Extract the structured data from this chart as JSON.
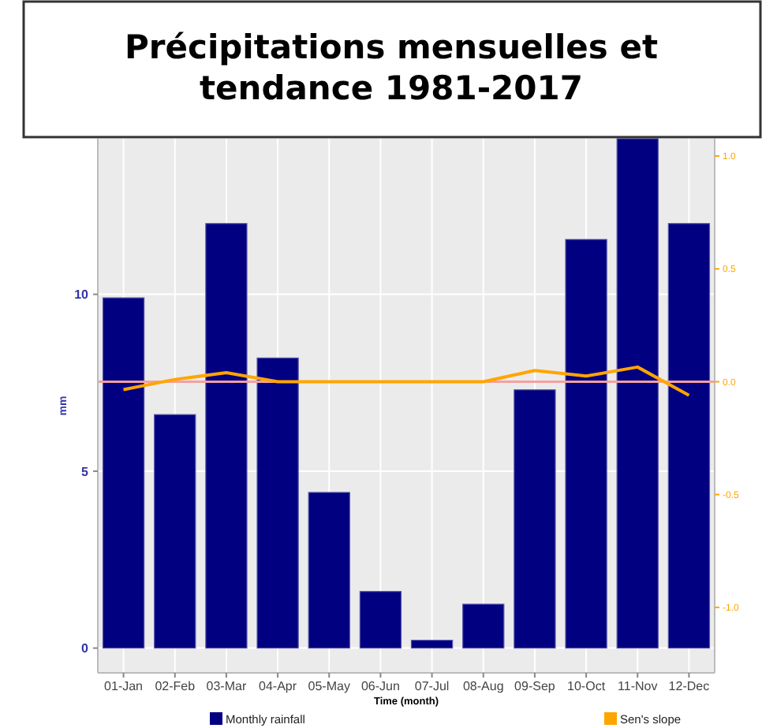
{
  "chart_data": {
    "type": "bar",
    "title": "Précipitations mensuelles et tendance 1981-2017",
    "xlabel": "Time (month)",
    "ylabel": "mm",
    "categories": [
      "01-Jan",
      "02-Feb",
      "03-Mar",
      "04-Apr",
      "05-May",
      "06-Jun",
      "07-Jul",
      "08-Aug",
      "09-Sep",
      "10-Oct",
      "11-Nov",
      "12-Dec"
    ],
    "series": [
      {
        "name": "Monthly rainfall",
        "color": "#000080",
        "values": [
          9.9,
          6.6,
          12.0,
          8.2,
          4.4,
          1.6,
          0.22,
          1.24,
          7.3,
          11.55,
          14.4,
          12.0
        ]
      },
      {
        "name": "Sen's slope",
        "type": "line",
        "axis": "y2",
        "color": "#ffa500",
        "values": [
          -0.035,
          0.01,
          0.04,
          0.0,
          0.0,
          0.0,
          0.0,
          0.0,
          0.05,
          0.025,
          0.065,
          -0.06
        ]
      }
    ],
    "ylim": [
      -0.7,
      14.4
    ],
    "yticks": [
      0,
      5,
      10
    ],
    "y2lim": [
      -1.29,
      1.077
    ],
    "y2ticks": [
      {
        "value": -1,
        "label": "-1.0"
      },
      {
        "value": -0.5,
        "label": "-0.5"
      },
      {
        "value": 0,
        "label": "0.0"
      },
      {
        "value": 0.5,
        "label": "0.5"
      },
      {
        "value": 1,
        "label": "1.0"
      }
    ],
    "ref_lines": [
      {
        "axis": "y2",
        "value": 0,
        "color": "#f4a0a0"
      }
    ],
    "grid": true,
    "legend": "bottom"
  }
}
